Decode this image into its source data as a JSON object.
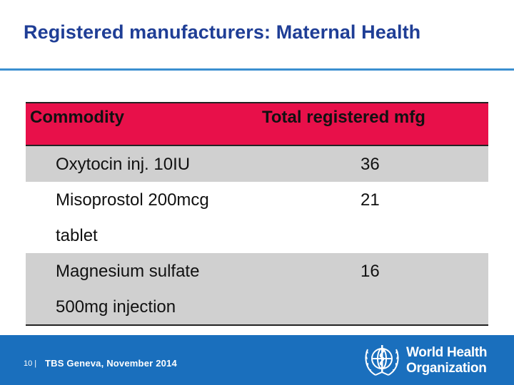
{
  "slide": {
    "title": "Registered manufacturers: Maternal Health"
  },
  "table": {
    "headers": [
      "Commodity",
      "Total registered mfg"
    ],
    "rows": [
      {
        "name_lines": [
          "Oxytocin inj. 10IU"
        ],
        "count": "36"
      },
      {
        "name_lines": [
          "Misoprostol 200mcg",
          "tablet"
        ],
        "count": "21"
      },
      {
        "name_lines": [
          "Magnesium sulfate",
          "500mg injection"
        ],
        "count": "16"
      }
    ]
  },
  "footer": {
    "page_number": "10 |",
    "event": "TBS Geneva, November 2014"
  },
  "logo": {
    "line1": "World Health",
    "line2": "Organization"
  },
  "colors": {
    "title": "#1f3e96",
    "header_fill": "#e8104a",
    "row_shade": "#d0d0d0",
    "footer_blue": "#1a6fbd"
  }
}
